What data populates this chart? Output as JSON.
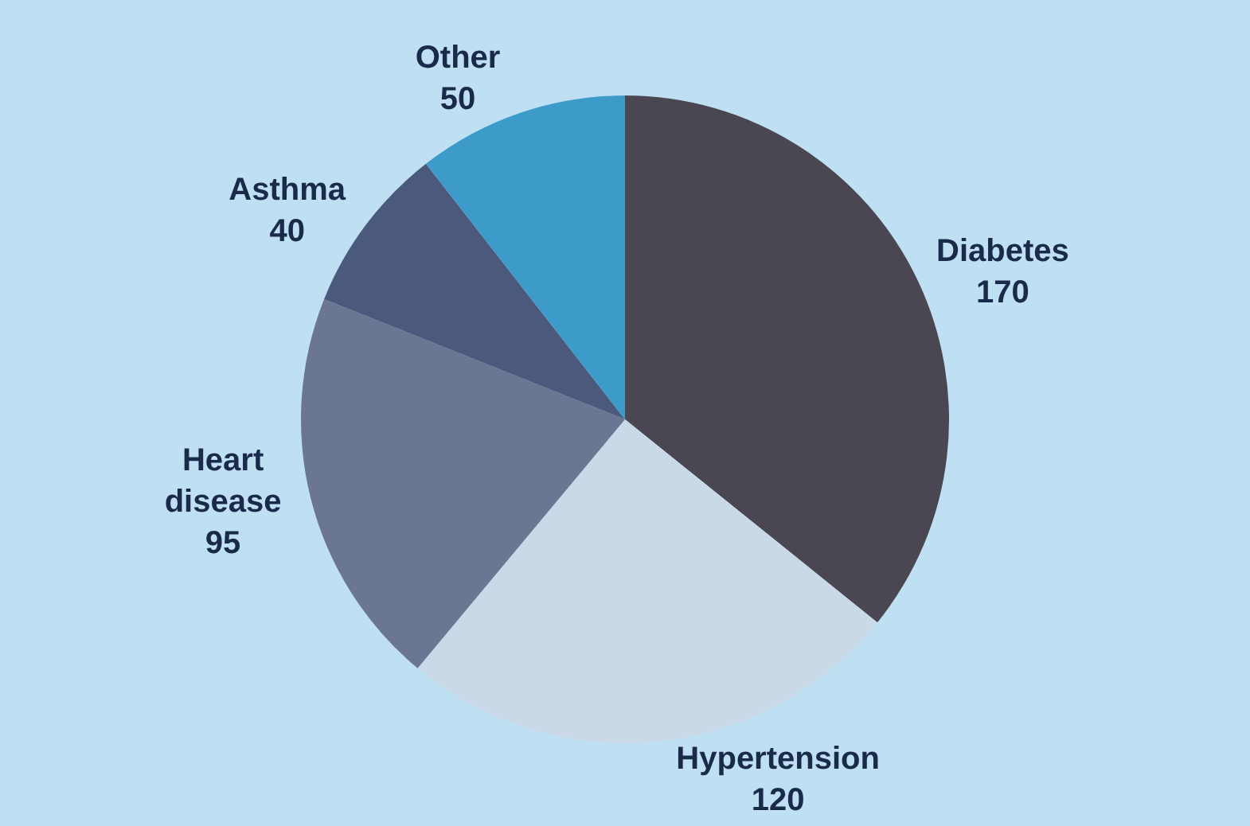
{
  "chart_data": {
    "type": "pie",
    "categories": [
      "Diabetes",
      "Hypertension",
      "Heart disease",
      "Asthma",
      "Other"
    ],
    "values": [
      170,
      120,
      95,
      40,
      50
    ],
    "colors": [
      "#4a4652",
      "#c9d9e8",
      "#6b7792",
      "#4b5a7c",
      "#3d9bc9"
    ],
    "data_labels": true,
    "legend": false
  }
}
